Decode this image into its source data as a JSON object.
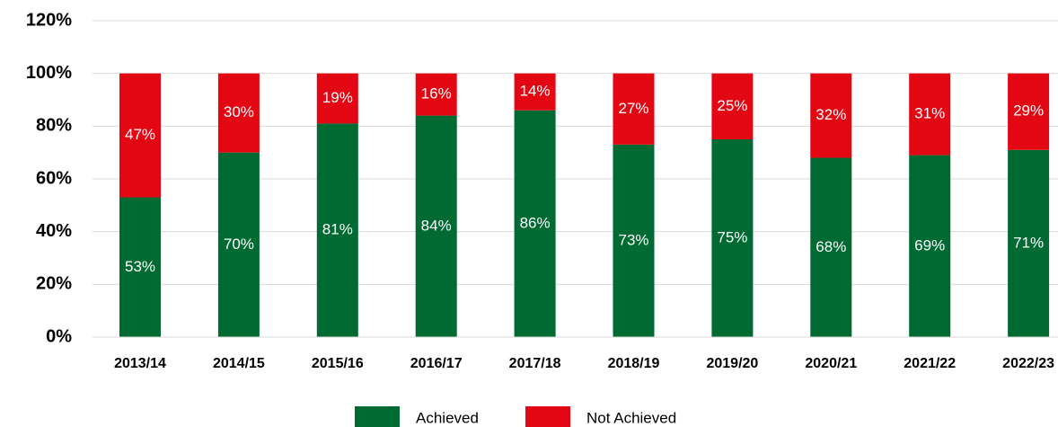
{
  "chart_data": {
    "type": "stacked_bar",
    "categories": [
      "2013/14",
      "2014/15",
      "2015/16",
      "2016/17",
      "2017/18",
      "2018/19",
      "2019/20",
      "2020/21",
      "2021/22",
      "2022/23"
    ],
    "series": [
      {
        "name": "Achieved",
        "color": "#006a33",
        "values": [
          53,
          70,
          81,
          84,
          86,
          73,
          75,
          68,
          69,
          71
        ],
        "value_labels": [
          "53%",
          "70%",
          "81%",
          "84%",
          "86%",
          "73%",
          "75%",
          "68%",
          "69%",
          "71%"
        ]
      },
      {
        "name": "Not Achieved",
        "color": "#e30613",
        "values": [
          47,
          30,
          19,
          16,
          14,
          27,
          25,
          32,
          31,
          29
        ],
        "value_labels": [
          "47%",
          "30%",
          "19%",
          "16%",
          "14%",
          "27%",
          "25%",
          "32%",
          "31%",
          "29%"
        ]
      }
    ],
    "ylim": [
      0,
      120
    ],
    "yticks": [
      {
        "value": 0,
        "label": "0%"
      },
      {
        "value": 20,
        "label": "20%"
      },
      {
        "value": 40,
        "label": "40%"
      },
      {
        "value": 60,
        "label": "60%"
      },
      {
        "value": 80,
        "label": "80%"
      },
      {
        "value": 100,
        "label": "100%"
      },
      {
        "value": 120,
        "label": "120%"
      }
    ],
    "grid": true,
    "legend": "bottom"
  }
}
